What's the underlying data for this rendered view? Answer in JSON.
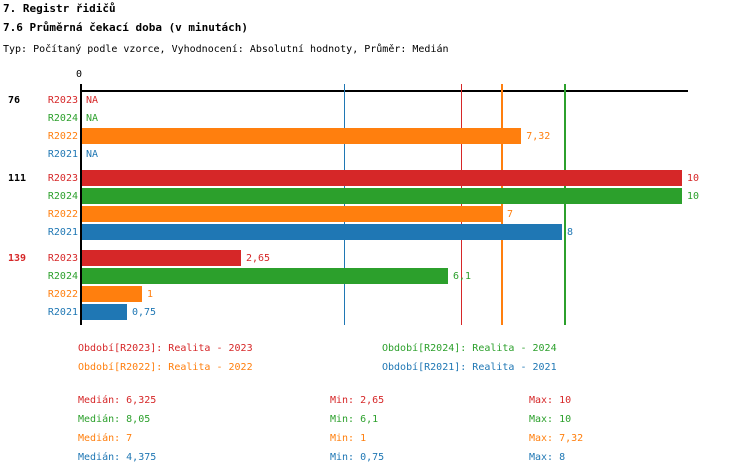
{
  "header": {
    "title1": "7. Registr řidičů",
    "title2": "7.6 Průměrná čekací doba (v minutách)",
    "meta": "Typ: Počítaný podle vzorce, Vyhodnocení: Absolutní hodnoty, Průměr: Medián"
  },
  "colors": {
    "R2023": "#d62728",
    "R2024": "#2ca02c",
    "R2022": "#ff7f0e",
    "R2021": "#1f77b4",
    "axis": "#000000"
  },
  "chart_data": {
    "type": "bar",
    "orientation": "horizontal",
    "title": "7.6 Průměrná čekací doba (v minutách)",
    "xlabel": "",
    "ylabel": "",
    "xlim": [
      0,
      10
    ],
    "x_origin_label": "0",
    "grid": false,
    "series_order": [
      "R2023",
      "R2024",
      "R2022",
      "R2021"
    ],
    "groups": [
      {
        "label": "76",
        "label_color": "#000000",
        "values": {
          "R2023": null,
          "R2024": null,
          "R2022": 7.32,
          "R2021": null
        },
        "display": {
          "R2023": "NA",
          "R2024": "NA",
          "R2022": "7,32",
          "R2021": "NA"
        }
      },
      {
        "label": "111",
        "label_color": "#000000",
        "values": {
          "R2023": 10,
          "R2024": 10,
          "R2022": 7,
          "R2021": 8
        },
        "display": {
          "R2023": "10",
          "R2024": "10",
          "R2022": "7",
          "R2021": "8"
        }
      },
      {
        "label": "139",
        "label_color": "#d62728",
        "values": {
          "R2023": 2.65,
          "R2024": 6.1,
          "R2022": 1,
          "R2021": 0.75
        },
        "display": {
          "R2023": "2,65",
          "R2024": "6,1",
          "R2022": "1",
          "R2021": "0,75"
        }
      }
    ],
    "median_lines": {
      "R2023": 6.325,
      "R2024": 8.05,
      "R2022": 7,
      "R2021": 4.375
    }
  },
  "legend": [
    {
      "series": "R2023",
      "label": "Období[R2023]: Realita - 2023"
    },
    {
      "series": "R2024",
      "label": "Období[R2024]: Realita - 2024"
    },
    {
      "series": "R2022",
      "label": "Období[R2022]: Realita - 2022"
    },
    {
      "series": "R2021",
      "label": "Období[R2021]: Realita - 2021"
    }
  ],
  "stats": [
    {
      "series": "R2023",
      "median": "Medián: 6,325",
      "min": "Min: 2,65",
      "max": "Max: 10"
    },
    {
      "series": "R2024",
      "median": "Medián: 8,05",
      "min": "Min: 6,1",
      "max": "Max: 10"
    },
    {
      "series": "R2022",
      "median": "Medián: 7",
      "min": "Min: 1",
      "max": "Max: 7,32"
    },
    {
      "series": "R2021",
      "median": "Medián: 4,375",
      "min": "Min: 0,75",
      "max": "Max: 8"
    }
  ]
}
